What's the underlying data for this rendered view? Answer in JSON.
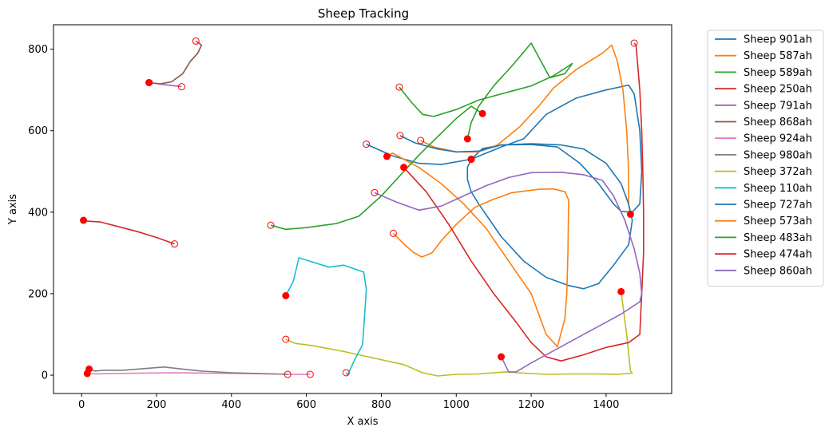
{
  "chart_data": {
    "type": "line",
    "title": "Sheep Tracking",
    "xlabel": "X axis",
    "ylabel": "Y axis",
    "xlim": [
      -75,
      1575
    ],
    "ylim": [
      -45,
      860
    ],
    "xticks": [
      0,
      200,
      400,
      600,
      800,
      1000,
      1200,
      1400
    ],
    "yticks": [
      0,
      200,
      400,
      600,
      800
    ],
    "grid": false,
    "legend_position": "outside-top-right",
    "start_marker": "hollow red circle",
    "end_marker": "filled red circle",
    "marker_color": "#ff0000",
    "series": [
      {
        "name": "Sheep 901ah",
        "color": "#1f77b4",
        "points": [
          [
            760,
            567
          ],
          [
            830,
            538
          ],
          [
            900,
            520
          ],
          [
            960,
            517
          ],
          [
            1040,
            530
          ],
          [
            1120,
            560
          ],
          [
            1180,
            580
          ],
          [
            1240,
            640
          ],
          [
            1320,
            680
          ],
          [
            1400,
            700
          ],
          [
            1460,
            712
          ],
          [
            1475,
            690
          ],
          [
            1490,
            600
          ],
          [
            1495,
            500
          ],
          [
            1490,
            420
          ],
          [
            1470,
            400
          ],
          [
            1440,
            402
          ],
          [
            1420,
            420
          ],
          [
            1380,
            470
          ],
          [
            1330,
            520
          ],
          [
            1270,
            560
          ],
          [
            1200,
            566
          ],
          [
            1120,
            565
          ],
          [
            1070,
            556
          ],
          [
            1040,
            530
          ]
        ]
      },
      {
        "name": "Sheep 587ah",
        "color": "#ff7f0e",
        "points": [
          [
            905,
            576
          ],
          [
            940,
            560
          ],
          [
            1000,
            548
          ],
          [
            1060,
            548
          ],
          [
            1110,
            565
          ],
          [
            1170,
            610
          ],
          [
            1220,
            660
          ],
          [
            1260,
            705
          ],
          [
            1320,
            750
          ],
          [
            1390,
            790
          ],
          [
            1415,
            810
          ],
          [
            1430,
            770
          ],
          [
            1445,
            700
          ],
          [
            1455,
            600
          ],
          [
            1460,
            500
          ],
          [
            1460,
            420
          ],
          [
            1465,
            395
          ]
        ]
      },
      {
        "name": "Sheep 589ah",
        "color": "#2ca02c",
        "points": [
          [
            848,
            707
          ],
          [
            880,
            670
          ],
          [
            910,
            640
          ],
          [
            940,
            635
          ],
          [
            1000,
            652
          ],
          [
            1060,
            675
          ],
          [
            1140,
            695
          ],
          [
            1200,
            710
          ],
          [
            1260,
            735
          ],
          [
            1310,
            765
          ],
          [
            1290,
            740
          ],
          [
            1250,
            730
          ],
          [
            1200,
            815
          ],
          [
            1150,
            760
          ],
          [
            1100,
            710
          ],
          [
            1060,
            660
          ],
          [
            1040,
            620
          ],
          [
            1030,
            580
          ]
        ]
      },
      {
        "name": "Sheep 250ah",
        "color": "#d62728",
        "points": [
          [
            248,
            322
          ],
          [
            200,
            338
          ],
          [
            150,
            352
          ],
          [
            100,
            364
          ],
          [
            50,
            376
          ],
          [
            15,
            378
          ],
          [
            5,
            380
          ]
        ]
      },
      {
        "name": "Sheep 791ah",
        "color": "#9467bd",
        "points": [
          [
            267,
            708
          ],
          [
            230,
            712
          ],
          [
            180,
            718
          ]
        ]
      },
      {
        "name": "Sheep 868ah",
        "color": "#8c564b",
        "points": [
          [
            305,
            820
          ],
          [
            320,
            810
          ],
          [
            310,
            790
          ],
          [
            290,
            770
          ],
          [
            270,
            740
          ],
          [
            240,
            720
          ],
          [
            210,
            715
          ],
          [
            180,
            718
          ]
        ]
      },
      {
        "name": "Sheep 924ah",
        "color": "#e377c2",
        "points": [
          [
            610,
            2
          ],
          [
            560,
            2
          ],
          [
            500,
            3
          ],
          [
            420,
            4
          ],
          [
            330,
            5
          ],
          [
            250,
            6
          ],
          [
            150,
            5
          ],
          [
            80,
            4
          ],
          [
            40,
            3
          ],
          [
            15,
            4
          ]
        ]
      },
      {
        "name": "Sheep 980ah",
        "color": "#7f7f7f",
        "points": [
          [
            550,
            2
          ],
          [
            480,
            4
          ],
          [
            400,
            6
          ],
          [
            320,
            10
          ],
          [
            260,
            16
          ],
          [
            220,
            20
          ],
          [
            180,
            17
          ],
          [
            150,
            15
          ],
          [
            110,
            12
          ],
          [
            60,
            12
          ],
          [
            35,
            10
          ],
          [
            20,
            15
          ]
        ]
      },
      {
        "name": "Sheep 372ah",
        "color": "#bcbd22",
        "points": [
          [
            545,
            88
          ],
          [
            570,
            78
          ],
          [
            620,
            72
          ],
          [
            700,
            58
          ],
          [
            780,
            42
          ],
          [
            860,
            26
          ],
          [
            910,
            6
          ],
          [
            950,
            -2
          ],
          [
            1000,
            2
          ],
          [
            1060,
            3
          ],
          [
            1130,
            8
          ],
          [
            1180,
            5
          ],
          [
            1240,
            2
          ],
          [
            1300,
            3
          ],
          [
            1380,
            3
          ],
          [
            1430,
            2
          ],
          [
            1470,
            5
          ],
          [
            1465,
            10
          ],
          [
            1455,
            100
          ],
          [
            1440,
            205
          ]
        ]
      },
      {
        "name": "Sheep 110ah",
        "color": "#17becf",
        "points": [
          [
            706,
            6
          ],
          [
            710,
            0
          ],
          [
            730,
            40
          ],
          [
            750,
            75
          ],
          [
            760,
            210
          ],
          [
            753,
            253
          ],
          [
            700,
            270
          ],
          [
            660,
            265
          ],
          [
            580,
            288
          ],
          [
            565,
            230
          ],
          [
            545,
            195
          ]
        ]
      },
      {
        "name": "Sheep 727ah",
        "color": "#1f77b4",
        "points": [
          [
            850,
            588
          ],
          [
            890,
            570
          ],
          [
            950,
            555
          ],
          [
            1000,
            548
          ],
          [
            1060,
            550
          ],
          [
            1120,
            565
          ],
          [
            1200,
            568
          ],
          [
            1280,
            565
          ],
          [
            1340,
            555
          ],
          [
            1400,
            520
          ],
          [
            1440,
            470
          ],
          [
            1460,
            420
          ],
          [
            1470,
            380
          ],
          [
            1460,
            320
          ],
          [
            1420,
            270
          ],
          [
            1380,
            225
          ],
          [
            1340,
            212
          ],
          [
            1300,
            220
          ],
          [
            1240,
            240
          ],
          [
            1180,
            280
          ],
          [
            1120,
            340
          ],
          [
            1090,
            380
          ],
          [
            1060,
            420
          ],
          [
            1040,
            450
          ],
          [
            1030,
            480
          ],
          [
            1030,
            510
          ],
          [
            1040,
            530
          ]
        ]
      },
      {
        "name": "Sheep 573ah",
        "color": "#ff7f0e",
        "points": [
          [
            832,
            348
          ],
          [
            860,
            322
          ],
          [
            885,
            302
          ],
          [
            908,
            290
          ],
          [
            935,
            300
          ],
          [
            960,
            330
          ],
          [
            1000,
            370
          ],
          [
            1050,
            412
          ],
          [
            1100,
            432
          ],
          [
            1150,
            448
          ],
          [
            1220,
            456
          ],
          [
            1260,
            457
          ],
          [
            1290,
            450
          ],
          [
            1300,
            430
          ],
          [
            1298,
            300
          ],
          [
            1295,
            200
          ],
          [
            1290,
            138
          ],
          [
            1270,
            70
          ],
          [
            1240,
            100
          ],
          [
            1200,
            200
          ],
          [
            1140,
            280
          ],
          [
            1080,
            360
          ],
          [
            1020,
            420
          ],
          [
            960,
            470
          ],
          [
            900,
            510
          ],
          [
            860,
            530
          ],
          [
            830,
            545
          ],
          [
            815,
            537
          ]
        ]
      },
      {
        "name": "Sheep 483ah",
        "color": "#2ca02c",
        "points": [
          [
            505,
            368
          ],
          [
            545,
            358
          ],
          [
            600,
            362
          ],
          [
            680,
            372
          ],
          [
            740,
            390
          ],
          [
            800,
            440
          ],
          [
            850,
            490
          ],
          [
            900,
            540
          ],
          [
            950,
            585
          ],
          [
            1000,
            630
          ],
          [
            1040,
            660
          ],
          [
            1070,
            642
          ]
        ]
      },
      {
        "name": "Sheep 474ah",
        "color": "#d62728",
        "points": [
          [
            1475,
            815
          ],
          [
            1480,
            810
          ],
          [
            1490,
            700
          ],
          [
            1495,
            600
          ],
          [
            1498,
            500
          ],
          [
            1500,
            400
          ],
          [
            1500,
            300
          ],
          [
            1495,
            200
          ],
          [
            1490,
            100
          ],
          [
            1460,
            80
          ],
          [
            1400,
            68
          ],
          [
            1340,
            50
          ],
          [
            1280,
            35
          ],
          [
            1240,
            45
          ],
          [
            1200,
            80
          ],
          [
            1160,
            130
          ],
          [
            1100,
            200
          ],
          [
            1040,
            280
          ],
          [
            980,
            370
          ],
          [
            920,
            450
          ],
          [
            880,
            490
          ],
          [
            860,
            510
          ]
        ]
      },
      {
        "name": "Sheep 860ah",
        "color": "#9467bd",
        "points": [
          [
            782,
            448
          ],
          [
            840,
            425
          ],
          [
            900,
            405
          ],
          [
            960,
            415
          ],
          [
            1020,
            440
          ],
          [
            1080,
            465
          ],
          [
            1140,
            485
          ],
          [
            1200,
            497
          ],
          [
            1280,
            498
          ],
          [
            1340,
            492
          ],
          [
            1390,
            478
          ],
          [
            1420,
            440
          ],
          [
            1450,
            380
          ],
          [
            1475,
            310
          ],
          [
            1490,
            250
          ],
          [
            1495,
            200
          ],
          [
            1490,
            180
          ],
          [
            1440,
            150
          ],
          [
            1380,
            120
          ],
          [
            1320,
            90
          ],
          [
            1260,
            60
          ],
          [
            1200,
            30
          ],
          [
            1160,
            8
          ],
          [
            1140,
            8
          ],
          [
            1120,
            45
          ]
        ]
      }
    ]
  }
}
